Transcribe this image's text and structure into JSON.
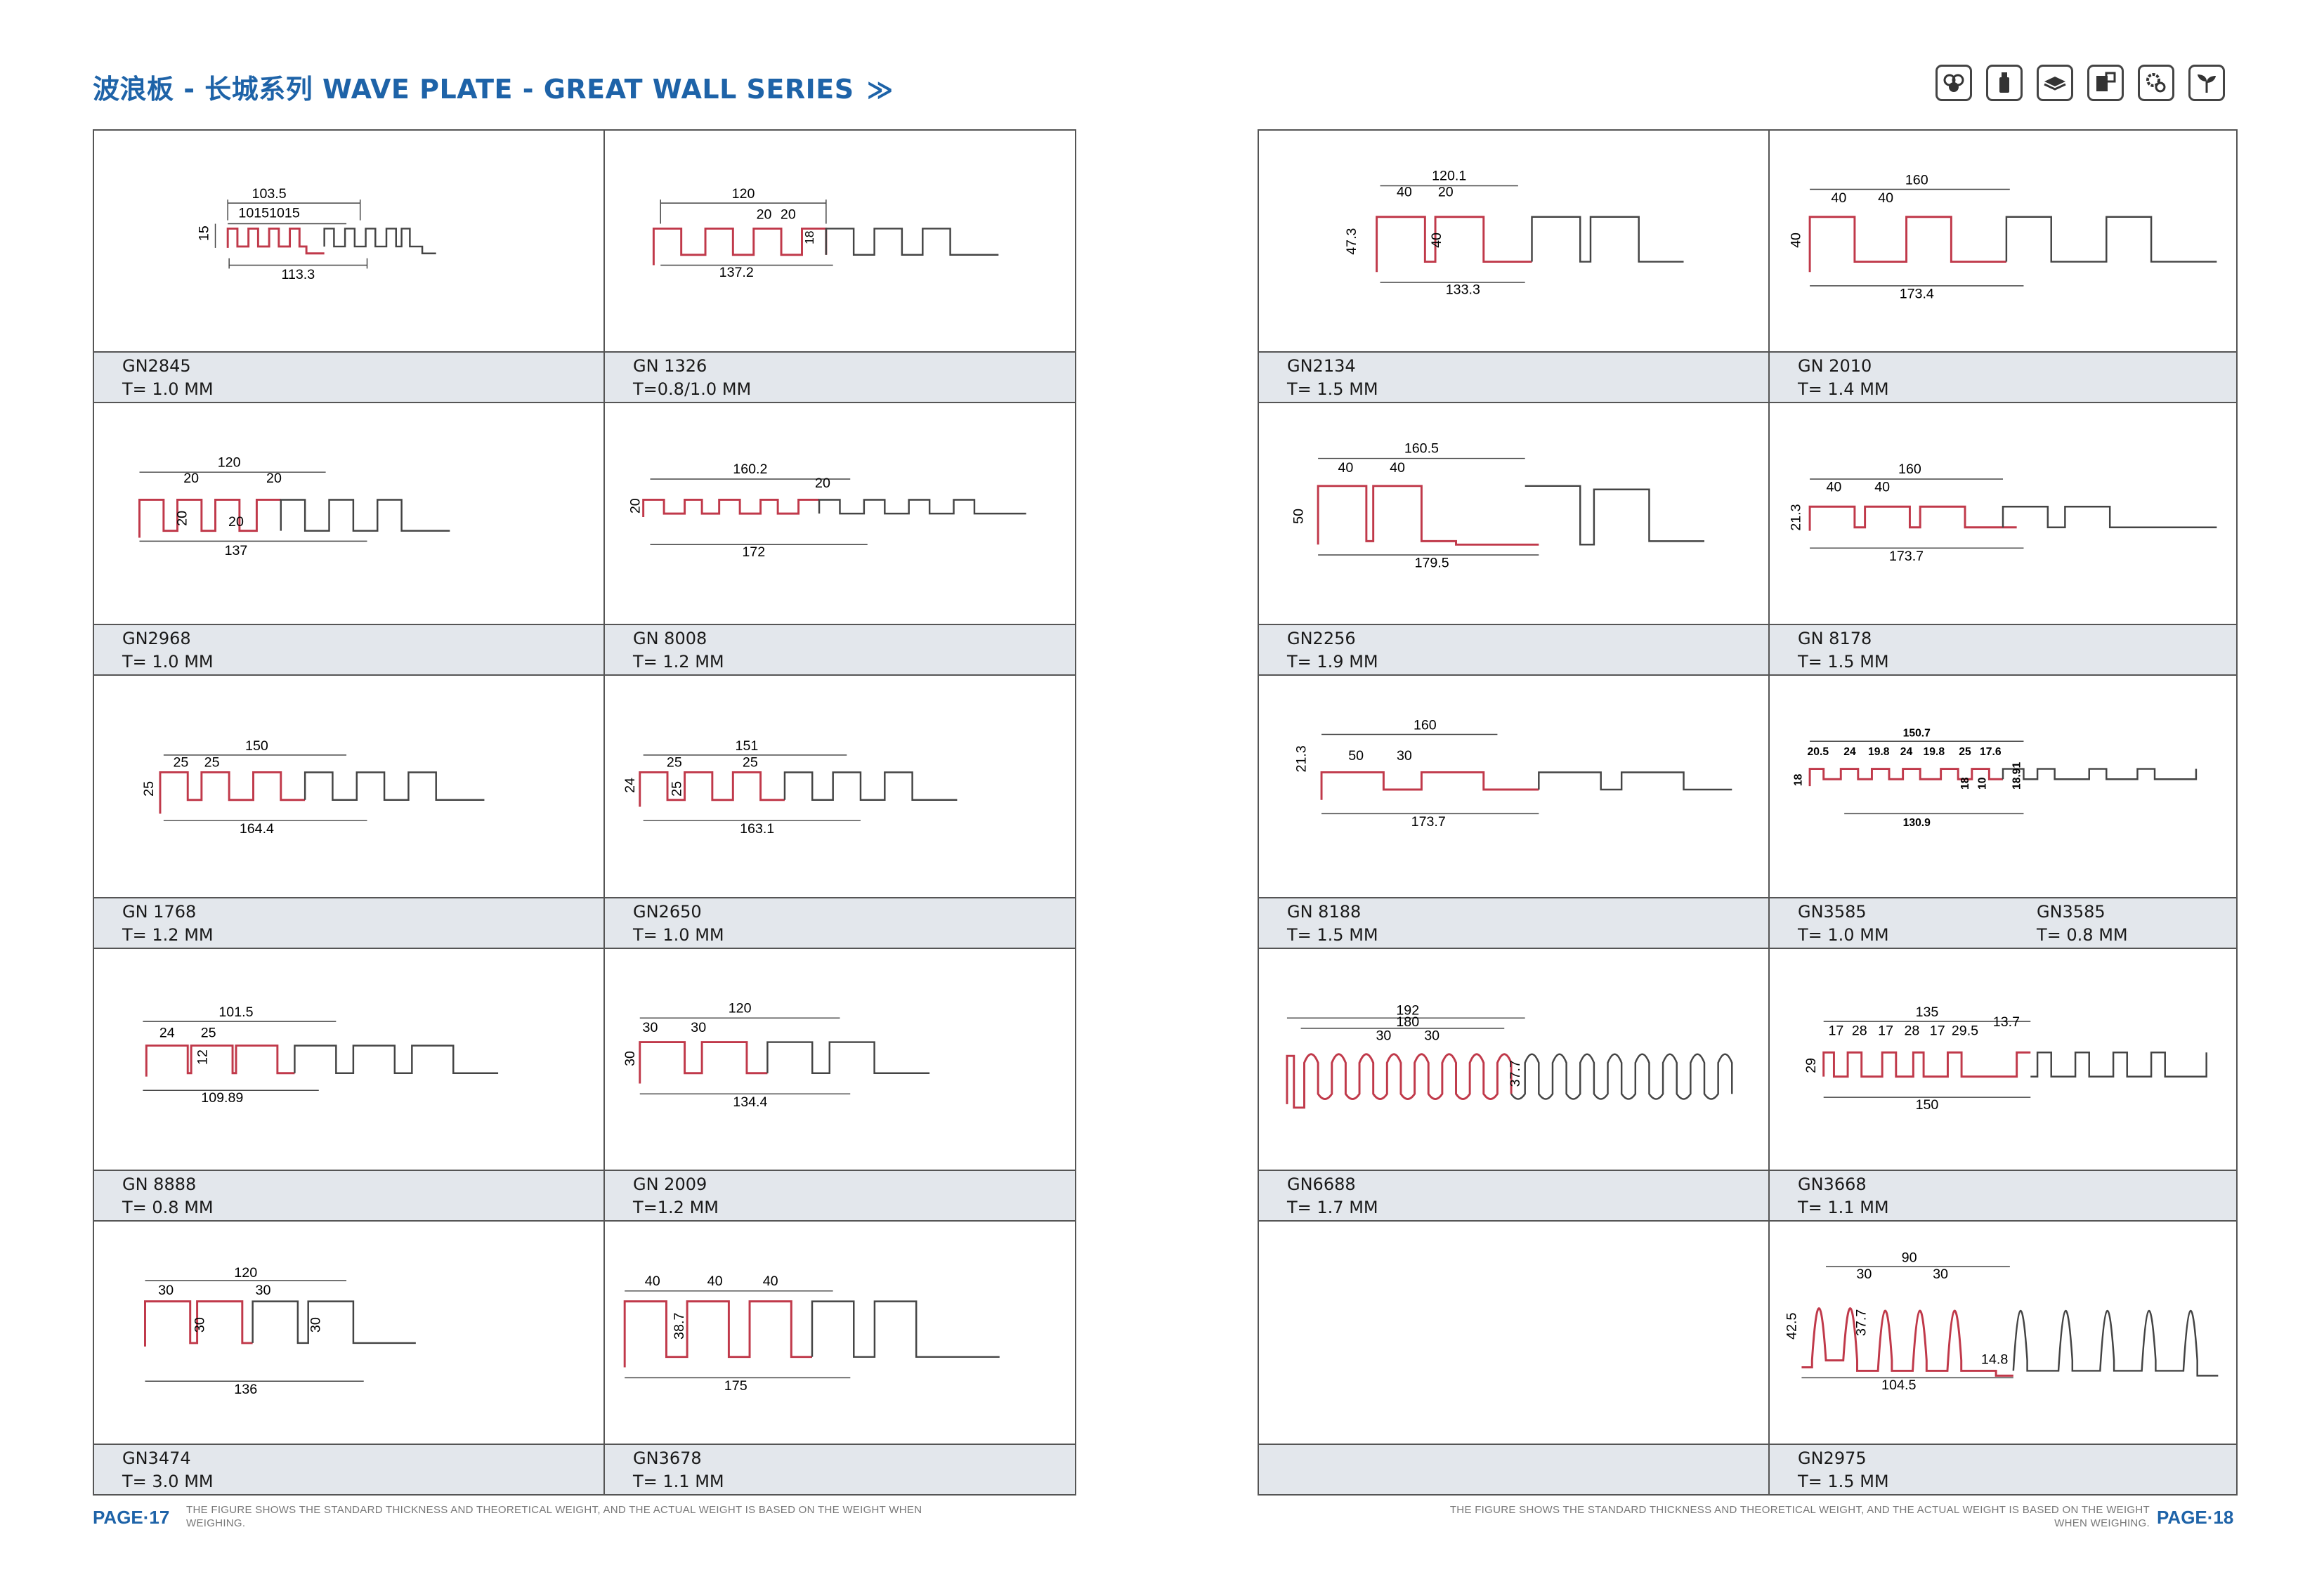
{
  "title": "波浪板 - 长城系列 WAVE PLATE - GREAT WALL SERIES",
  "title_chevron": "≫",
  "brand_color": "#1e63a8",
  "accent_profile_color": "#c0394a",
  "header_icons": [
    "cubes-icon",
    "bottle-icon",
    "board-icon",
    "puzzle-icon",
    "gears-icon",
    "sprout-icon"
  ],
  "left_page": {
    "page_number": "PAGE·17",
    "footnote": "THE FIGURE SHOWS THE STANDARD THICKNESS AND THEORETICAL WEIGHT, AND THE ACTUAL WEIGHT IS BASED ON THE WEIGHT WHEN WEIGHING.",
    "cells": [
      {
        "code": "GN2845",
        "thickness": "T= 1.0 MM",
        "dims": [
          "103.5",
          "10151015",
          "15",
          "113.3"
        ]
      },
      {
        "code": "GN 1326",
        "thickness": "T=0.8/1.0 MM",
        "dims": [
          "120",
          "20",
          "20",
          "18",
          "137.2"
        ]
      },
      {
        "code": "GN2968",
        "thickness": "T=  1.0 MM",
        "dims": [
          "120",
          "20",
          "20",
          "20",
          "20",
          "137"
        ]
      },
      {
        "code": "GN 8008",
        "thickness": "T= 1.2 MM",
        "dims": [
          "160.2",
          "20",
          "20",
          "172"
        ]
      },
      {
        "code": "GN 1768",
        "thickness": "T= 1.2 MM",
        "dims": [
          "150",
          "25",
          "25",
          "25",
          "164.4"
        ]
      },
      {
        "code": "GN2650",
        "thickness": "T= 1.0 MM",
        "dims": [
          "151",
          "25",
          "25",
          "24",
          "25",
          "163.1"
        ]
      },
      {
        "code": "GN 8888",
        "thickness": "T= 0.8 MM",
        "dims": [
          "101.5",
          "24",
          "25",
          "12",
          "109.89"
        ]
      },
      {
        "code": "GN 2009",
        "thickness": "T=1.2 MM",
        "dims": [
          "120",
          "30",
          "30",
          "30",
          "134.4"
        ]
      },
      {
        "code": "GN3474",
        "thickness": "T= 3.0 MM",
        "dims": [
          "120",
          "30",
          "30",
          "30",
          "30",
          "136"
        ]
      },
      {
        "code": "GN3678",
        "thickness": "T= 1.1 MM",
        "dims": [
          "40",
          "40",
          "40",
          "38.7",
          "175"
        ]
      }
    ]
  },
  "right_page": {
    "page_number": "PAGE·18",
    "footnote": "THE FIGURE SHOWS THE STANDARD THICKNESS AND THEORETICAL WEIGHT, AND THE ACTUAL WEIGHT IS BASED ON THE WEIGHT WHEN WEIGHING.",
    "cells": [
      {
        "code": "GN2134",
        "thickness": "T= 1.5 MM",
        "dims": [
          "120.1",
          "40",
          "20",
          "47.3",
          "40",
          "133.3"
        ]
      },
      {
        "code": "GN 2010",
        "thickness": "T= 1.4 MM",
        "dims": [
          "160",
          "40",
          "40",
          "40",
          "173.4"
        ]
      },
      {
        "code": "GN2256",
        "thickness": "T= 1.9 MM",
        "dims": [
          "160.5",
          "40",
          "40",
          "50",
          "179.5"
        ]
      },
      {
        "code": "GN 8178",
        "thickness": "T= 1.5 MM",
        "dims": [
          "160",
          "40",
          "40",
          "21.3",
          "173.7"
        ]
      },
      {
        "code": "GN 8188",
        "thickness": "T= 1.5 MM",
        "dims": [
          "160",
          "50",
          "30",
          "21.3",
          "173.7"
        ]
      },
      {
        "code": "GN3585",
        "thickness": "T= 1.0 MM",
        "code2": "GN3585",
        "thickness2": "T= 0.8 MM",
        "dims": [
          "150.7",
          "20.5",
          "24",
          "19.8",
          "24",
          "19.8",
          "25",
          "17.6",
          "18",
          "10",
          "18",
          "18.91",
          "130.9"
        ]
      },
      {
        "code": "GN6688",
        "thickness": "T=  1.7 MM",
        "dims": [
          "192",
          "180",
          "30",
          "30",
          "37.7"
        ]
      },
      {
        "code": "GN3668",
        "thickness": "T=  1.1 MM",
        "dims": [
          "135",
          "17",
          "28",
          "17",
          "28",
          "17",
          "29.5",
          "13.7",
          "29",
          "150"
        ]
      },
      {
        "code": "",
        "thickness": "",
        "dims": []
      },
      {
        "code": "GN2975",
        "thickness": "T= 1.5 MM",
        "dims": [
          "90",
          "30",
          "30",
          "42.5",
          "37.7",
          "14.8",
          "104.5"
        ]
      }
    ]
  }
}
